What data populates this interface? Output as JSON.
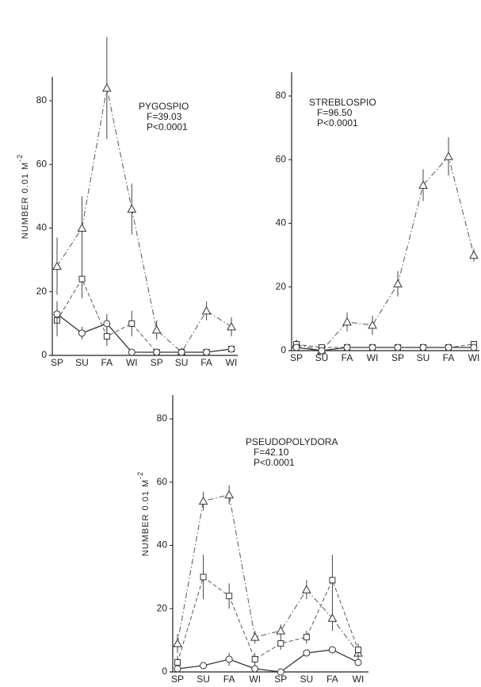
{
  "chart_data": [
    {
      "type": "line",
      "annotations": [
        "PYGOSPIO",
        "F=39.03",
        "P<0.0001"
      ],
      "ylabel": "NUMBER  0.01 M",
      "ylabel_sup": "-2",
      "categories": [
        "SP",
        "SU",
        "FA",
        "WI",
        "SP",
        "SU",
        "FA",
        "WI"
      ],
      "ylim": [
        0,
        80
      ],
      "yticks": [
        0,
        20,
        40,
        60,
        80
      ],
      "series": [
        {
          "marker": "triangle",
          "dash": "dashdot",
          "color": "#555",
          "values": [
            28,
            40,
            84,
            46,
            8,
            1,
            14,
            9
          ],
          "errors": [
            9,
            10,
            16,
            8,
            3,
            1,
            3,
            3
          ]
        },
        {
          "marker": "square",
          "dash": "dashed",
          "color": "#555",
          "values": [
            11,
            24,
            6,
            10,
            1,
            1,
            1,
            2
          ],
          "errors": [
            5,
            6,
            3,
            4,
            1,
            1,
            1,
            1
          ]
        },
        {
          "marker": "circle",
          "dash": "solid",
          "color": "#333",
          "values": [
            13,
            7,
            10,
            1,
            1,
            1,
            1,
            2
          ],
          "errors": [
            4,
            2,
            3,
            1,
            1,
            1,
            1,
            1
          ]
        }
      ]
    },
    {
      "type": "line",
      "annotations": [
        "STREBLOSPIO",
        "F=96.50",
        "P<0.0001"
      ],
      "categories": [
        "SP",
        "SU",
        "FA",
        "WI",
        "SP",
        "SU",
        "FA",
        "WI"
      ],
      "ylim": [
        0,
        80
      ],
      "yticks": [
        0,
        20,
        40,
        60,
        80
      ],
      "series": [
        {
          "marker": "triangle",
          "dash": "dashdot",
          "color": "#555",
          "values": [
            2,
            0,
            9,
            8,
            21,
            52,
            61,
            30
          ],
          "errors": [
            1,
            1,
            3,
            3,
            4,
            5,
            6,
            2
          ]
        },
        {
          "marker": "square",
          "dash": "dashed",
          "color": "#555",
          "values": [
            2,
            1,
            1,
            1,
            1,
            1,
            1,
            2
          ],
          "errors": [
            1,
            1,
            1,
            1,
            1,
            1,
            1,
            1
          ]
        },
        {
          "marker": "circle",
          "dash": "solid",
          "color": "#333",
          "values": [
            1,
            0,
            1,
            1,
            1,
            1,
            1,
            1
          ],
          "errors": [
            1,
            1,
            1,
            1,
            1,
            1,
            1,
            1
          ]
        }
      ]
    },
    {
      "type": "line",
      "annotations": [
        "PSEUDOPOLYDORA",
        "F=42.10",
        "P<0.0001"
      ],
      "ylabel": "NUMBER  0.01 M",
      "ylabel_sup": "-2",
      "categories": [
        "SP",
        "SU",
        "FA",
        "WI",
        "SP",
        "SU",
        "FA",
        "WI"
      ],
      "ylim": [
        0,
        80
      ],
      "yticks": [
        0,
        20,
        40,
        60,
        80
      ],
      "series": [
        {
          "marker": "triangle",
          "dash": "dashdot",
          "color": "#555",
          "values": [
            9,
            54,
            56,
            11,
            13,
            26,
            17,
            6
          ],
          "errors": [
            3,
            3,
            3,
            2,
            2,
            3,
            4,
            2
          ]
        },
        {
          "marker": "square",
          "dash": "dashed",
          "color": "#555",
          "values": [
            3,
            30,
            24,
            4,
            9,
            11,
            29,
            7
          ],
          "errors": [
            2,
            7,
            4,
            2,
            2,
            2,
            8,
            2
          ]
        },
        {
          "marker": "circle",
          "dash": "solid",
          "color": "#333",
          "values": [
            1,
            2,
            4,
            1,
            0,
            6,
            7,
            3
          ],
          "errors": [
            1,
            1,
            2,
            1,
            1,
            1,
            1,
            1
          ]
        }
      ]
    }
  ]
}
